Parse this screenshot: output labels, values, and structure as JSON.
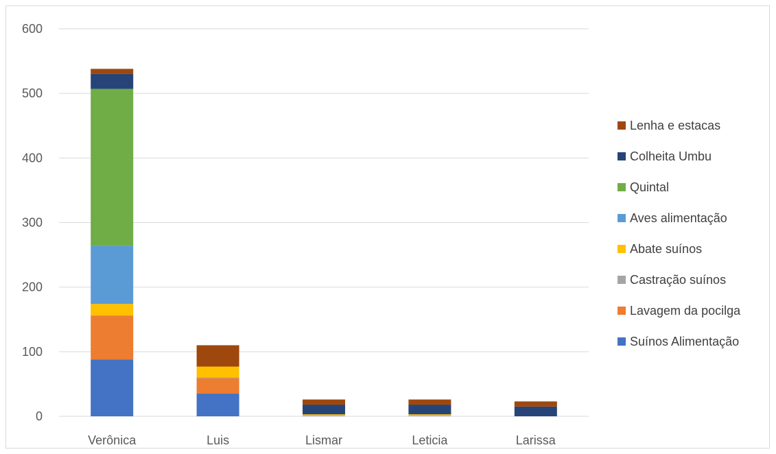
{
  "chart_data": {
    "type": "bar",
    "stacked": true,
    "title": "",
    "xlabel": "",
    "ylabel": "",
    "categories": [
      "Verônica",
      "Luis",
      "Lismar",
      "Leticia",
      "Larissa"
    ],
    "ylim": [
      0,
      600
    ],
    "yticks": [
      "0",
      "100",
      "200",
      "300",
      "400",
      "500",
      "600"
    ],
    "grid": true,
    "legend_position": "right",
    "series": [
      {
        "name": "Suínos Alimentação",
        "color": "#4472C4",
        "values": [
          88,
          35,
          0,
          0,
          0
        ]
      },
      {
        "name": "Lavagem da pocilga",
        "color": "#ED7D31",
        "values": [
          68,
          24,
          0,
          0,
          0
        ]
      },
      {
        "name": "Castração suínos",
        "color": "#A5A5A5",
        "values": [
          0,
          1,
          1,
          1,
          0
        ]
      },
      {
        "name": "Abate suínos",
        "color": "#FFC000",
        "values": [
          18,
          17,
          2,
          2,
          0
        ]
      },
      {
        "name": "Aves alimentação",
        "color": "#5B9BD5",
        "values": [
          90,
          0,
          0,
          0,
          0
        ]
      },
      {
        "name": "Quintal",
        "color": "#70AD47",
        "values": [
          243,
          0,
          0,
          0,
          0
        ]
      },
      {
        "name": "Colheita Umbu",
        "color": "#264478",
        "values": [
          23,
          0,
          15,
          15,
          15
        ]
      },
      {
        "name": "Lenha e estacas",
        "color": "#9E480E",
        "values": [
          8,
          33,
          8,
          8,
          8
        ]
      }
    ]
  }
}
